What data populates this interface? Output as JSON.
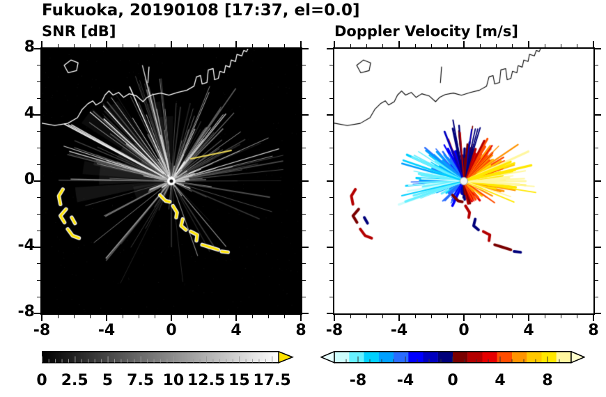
{
  "title": "Fukuoka, 20190108 [17:37, el=0.0]",
  "panels": {
    "snr": {
      "label": "SNR [dB]"
    },
    "doppler": {
      "label": "Doppler Velocity [m/s]"
    }
  },
  "axes": {
    "x_ticks": [
      "-8",
      "-4",
      "0",
      "4",
      "8"
    ],
    "y_ticks": [
      "8",
      "4",
      "0",
      "-4",
      "-8"
    ],
    "x_range": [
      -8,
      8
    ],
    "y_range": [
      -8,
      8
    ]
  },
  "colorbars": {
    "snr": {
      "labels": [
        "0",
        "2.5",
        "5",
        "7.5",
        "10",
        "12.5",
        "15",
        "17.5"
      ],
      "min": 0,
      "max": 18,
      "gradient": [
        "#000000",
        "#ffffff"
      ],
      "arrow_color": "#ffe300"
    },
    "doppler": {
      "labels": [
        "-8",
        "-4",
        "0",
        "4",
        "8"
      ],
      "min": -10,
      "max": 10,
      "segment_colors": [
        "#ccfdfd",
        "#66f0ff",
        "#00d0ff",
        "#00a0ff",
        "#2a6cff",
        "#0000ff",
        "#0000c0",
        "#00007a",
        "#7a0000",
        "#b40000",
        "#e60000",
        "#ff4d00",
        "#ff9400",
        "#ffc800",
        "#ffe800",
        "#fff7a0"
      ],
      "left_arrow_color": "#e8ffff",
      "right_arrow_color": "#ffffcc"
    }
  },
  "chart_data": {
    "type": "heatmap",
    "subtype": "radar_ppi",
    "title": "Fukuoka, 20190108 [17:37, el=0.0]",
    "station": "Fukuoka",
    "date": "20190108",
    "time": "17:37",
    "elevation_deg": 0.0,
    "x_range": [
      -8,
      8
    ],
    "y_range": [
      -8,
      8
    ],
    "panels": [
      {
        "name": "SNR",
        "title": "SNR [dB]",
        "units": "dB",
        "scale_min": 0,
        "scale_max": 18,
        "scale_ticks": [
          0,
          2.5,
          5,
          7.5,
          10,
          12.5,
          15,
          17.5
        ],
        "palette": "grayscale black(0) to white(17.5+), yellow overflow arrow",
        "features": "radial bright streaks centered on radar at (0,0); bright yellow high-SNR clutter arcs at lower-left (x -7..-5.7, y -0.5..-3.5) and south of center (x -0.7..3.5, y -0.9..-4.3); coastline drawn in white across upper third"
      },
      {
        "name": "Doppler velocity",
        "title": "Doppler Velocity [m/s]",
        "units": "m/s",
        "scale_min": -10,
        "scale_max": 10,
        "scale_ticks": [
          -8,
          -4,
          0,
          4,
          8
        ],
        "palette": "cyan-blue-navy for negative, dark red-red-orange-yellow for positive",
        "features": "fan of velocity spokes within ~5 km of radar: negative (blue) on west side, positive (orange/yellow) on east side, dark values near the north-south axis; scattered red/navy clutter echoes matching the SNR clutter arcs; coastline drawn in black"
      }
    ]
  },
  "render": {
    "extent": [
      -8,
      8
    ],
    "coastline": [
      [
        [
          -8,
          3.5
        ],
        [
          -7.2,
          3.36
        ],
        [
          -6.4,
          3.49
        ],
        [
          -5.8,
          3.83
        ],
        [
          -5.5,
          4.34
        ],
        [
          -5.15,
          4.68
        ],
        [
          -4.85,
          4.85
        ],
        [
          -4.65,
          4.6
        ],
        [
          -4.3,
          4.8
        ],
        [
          -4.1,
          5.2
        ],
        [
          -3.85,
          5.45
        ],
        [
          -3.6,
          5.2
        ],
        [
          -3.25,
          5.36
        ],
        [
          -2.95,
          5.06
        ],
        [
          -2.6,
          5.28
        ],
        [
          -2.15,
          5.15
        ],
        [
          -1.75,
          4.8
        ],
        [
          -1.5,
          5.06
        ],
        [
          -1.15,
          5.23
        ],
        [
          -0.65,
          5.32
        ],
        [
          -0.15,
          5.19
        ],
        [
          0.4,
          5.36
        ],
        [
          0.95,
          5.49
        ],
        [
          1.4,
          5.74
        ],
        [
          1.55,
          6.3
        ],
        [
          1.8,
          6.38
        ],
        [
          1.9,
          5.87
        ],
        [
          2.2,
          5.96
        ],
        [
          2.28,
          6.72
        ],
        [
          2.58,
          6.8
        ],
        [
          2.67,
          6.13
        ],
        [
          2.9,
          6.21
        ],
        [
          3.0,
          6.64
        ],
        [
          3.27,
          6.55
        ],
        [
          3.35,
          6.98
        ],
        [
          3.6,
          6.89
        ],
        [
          3.7,
          7.32
        ],
        [
          3.96,
          7.23
        ],
        [
          4.05,
          7.66
        ],
        [
          4.35,
          7.57
        ],
        [
          4.47,
          7.9
        ],
        [
          4.65,
          7.83
        ],
        [
          4.75,
          8.05
        ]
      ],
      [
        [
          -1.45,
          5.95
        ],
        [
          -1.38,
          6.9
        ]
      ]
    ],
    "island": [
      [
        -6.62,
        7.0
      ],
      [
        -6.2,
        7.32
      ],
      [
        -5.76,
        7.15
      ],
      [
        -5.85,
        6.68
      ],
      [
        -6.37,
        6.55
      ]
    ],
    "patches": [
      {
        "pts": [
          [
            -6.7,
            -0.5
          ],
          [
            -6.95,
            -0.9
          ],
          [
            -6.85,
            -1.4
          ]
        ],
        "c": "#b40000"
      },
      {
        "pts": [
          [
            -6.5,
            -1.7
          ],
          [
            -6.85,
            -2.1
          ],
          [
            -6.6,
            -2.5
          ]
        ],
        "c": "#7a0000"
      },
      {
        "pts": [
          [
            -6.15,
            -2.2
          ],
          [
            -5.95,
            -2.55
          ]
        ],
        "c": "#00007a"
      },
      {
        "pts": [
          [
            -6.4,
            -2.9
          ],
          [
            -6.1,
            -3.3
          ],
          [
            -5.7,
            -3.45
          ]
        ],
        "c": "#b40000"
      },
      {
        "pts": [
          [
            -0.7,
            -0.85
          ],
          [
            -0.35,
            -1.2
          ],
          [
            -0.1,
            -1.25
          ]
        ],
        "c": "#7a0000"
      },
      {
        "pts": [
          [
            0.1,
            -1.5
          ],
          [
            0.35,
            -1.9
          ],
          [
            0.3,
            -2.2
          ]
        ],
        "c": "#b40000"
      },
      {
        "pts": [
          [
            0.7,
            -2.3
          ],
          [
            0.6,
            -2.7
          ],
          [
            0.9,
            -2.95
          ]
        ],
        "c": "#00007a"
      },
      {
        "pts": [
          [
            1.2,
            -3.05
          ],
          [
            1.6,
            -3.25
          ],
          [
            1.55,
            -3.6
          ]
        ],
        "c": "#b40000"
      },
      {
        "pts": [
          [
            1.9,
            -3.85
          ],
          [
            2.4,
            -4.0
          ],
          [
            2.9,
            -4.15
          ]
        ],
        "c": "#7a0000"
      },
      {
        "pts": [
          [
            3.1,
            -4.25
          ],
          [
            3.5,
            -4.3
          ]
        ],
        "c": "#00007a"
      }
    ],
    "snr": {
      "seed": 7,
      "rays": 165,
      "bright_rays": 38,
      "streaks": [
        [
          [
            1.2,
            1.35
          ],
          [
            3.7,
            1.85
          ]
        ]
      ]
    },
    "doppler": {
      "seed": 11,
      "spokes": 230,
      "vmax": 9
    }
  }
}
